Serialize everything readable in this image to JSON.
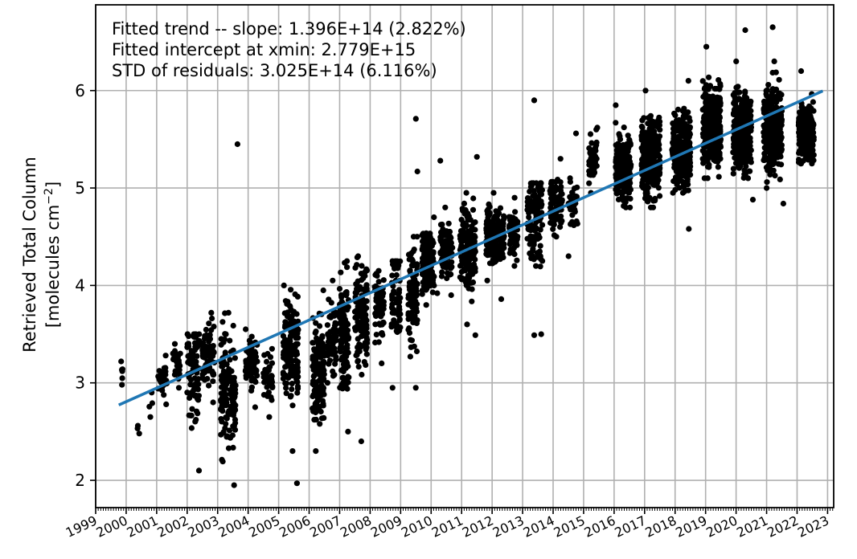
{
  "chart_data": {
    "type": "scatter",
    "title": "",
    "ylabel_line1": "Retrieved Total Column",
    "ylabel_line2": "[molecules cm",
    "ylabel_sup": "−2",
    "ylabel_close": "]",
    "xlim": [
      1999,
      2023.2
    ],
    "ylim": [
      1.72,
      6.88
    ],
    "yticks": [
      2,
      3,
      4,
      5,
      6
    ],
    "ytick_labels": [
      "2",
      "3",
      "4",
      "5",
      "6"
    ],
    "xticks": [
      1999,
      2000,
      2001,
      2002,
      2003,
      2004,
      2005,
      2006,
      2007,
      2008,
      2009,
      2010,
      2011,
      2012,
      2013,
      2014,
      2015,
      2016,
      2017,
      2018,
      2019,
      2020,
      2021,
      2022,
      2023
    ],
    "xtick_labels": [
      "1999",
      "2000",
      "2001",
      "2002",
      "2003",
      "2004",
      "2005",
      "2006",
      "2007",
      "2008",
      "2009",
      "2010",
      "2011",
      "2012",
      "2013",
      "2014",
      "2015",
      "2016",
      "2017",
      "2018",
      "2019",
      "2020",
      "2021",
      "2022",
      "2023"
    ],
    "grid": true,
    "annotations": [
      "Fitted trend -- slope: 1.396E+14 (2.822%)",
      "Fitted intercept at xmin: 2.779E+15",
      "STD of residuals: 3.025E+14 (6.116%)"
    ],
    "trend_line": {
      "x": [
        1999.8,
        2022.8
      ],
      "y": [
        2.779,
        5.99
      ],
      "color": "#1f77b4"
    },
    "series_color": "#000000",
    "clusters": [
      {
        "x": 1999.85,
        "w": 0.08,
        "n": 6,
        "lo": 2.98,
        "hi": 3.22,
        "c": 3.1
      },
      {
        "x": 2000.4,
        "w": 0.12,
        "n": 3,
        "lo": 2.48,
        "hi": 2.56,
        "c": 2.52
      },
      {
        "x": 2000.8,
        "w": 0.12,
        "n": 4,
        "lo": 2.65,
        "hi": 2.9,
        "c": 2.8
      },
      {
        "x": 2001.2,
        "w": 0.3,
        "n": 30,
        "lo": 2.78,
        "hi": 3.28,
        "c": 3.05
      },
      {
        "x": 2001.65,
        "w": 0.25,
        "n": 25,
        "lo": 2.95,
        "hi": 3.4,
        "c": 3.2
      },
      {
        "x": 2002.2,
        "w": 0.4,
        "n": 80,
        "lo": 2.1,
        "hi": 3.5,
        "c": 3.1
      },
      {
        "x": 2002.7,
        "w": 0.4,
        "n": 80,
        "lo": 2.8,
        "hi": 3.72,
        "c": 3.3
      },
      {
        "x": 2003.35,
        "w": 0.5,
        "n": 150,
        "lo": 1.95,
        "hi": 3.72,
        "c": 2.9
      },
      {
        "x": 2004.1,
        "w": 0.4,
        "n": 60,
        "lo": 2.75,
        "hi": 3.55,
        "c": 3.2
      },
      {
        "x": 2004.65,
        "w": 0.3,
        "n": 40,
        "lo": 2.65,
        "hi": 3.35,
        "c": 3.05
      },
      {
        "x": 2005.4,
        "w": 0.5,
        "n": 150,
        "lo": 2.3,
        "hi": 4.0,
        "c": 3.3
      },
      {
        "x": 2006.3,
        "w": 0.4,
        "n": 130,
        "lo": 2.3,
        "hi": 3.95,
        "c": 3.1
      },
      {
        "x": 2006.75,
        "w": 0.3,
        "n": 60,
        "lo": 3.0,
        "hi": 4.05,
        "c": 3.5
      },
      {
        "x": 2007.15,
        "w": 0.3,
        "n": 110,
        "lo": 2.5,
        "hi": 4.25,
        "c": 3.5
      },
      {
        "x": 2007.7,
        "w": 0.4,
        "n": 120,
        "lo": 2.4,
        "hi": 4.3,
        "c": 3.7
      },
      {
        "x": 2008.3,
        "w": 0.3,
        "n": 60,
        "lo": 3.2,
        "hi": 4.15,
        "c": 3.8
      },
      {
        "x": 2008.85,
        "w": 0.3,
        "n": 60,
        "lo": 2.95,
        "hi": 4.25,
        "c": 3.9
      },
      {
        "x": 2009.4,
        "w": 0.3,
        "n": 100,
        "lo": 2.95,
        "hi": 4.5,
        "c": 3.9
      },
      {
        "x": 2009.9,
        "w": 0.4,
        "n": 150,
        "lo": 3.8,
        "hi": 4.7,
        "c": 4.25
      },
      {
        "x": 2010.5,
        "w": 0.4,
        "n": 100,
        "lo": 3.9,
        "hi": 4.8,
        "c": 4.35
      },
      {
        "x": 2011.2,
        "w": 0.5,
        "n": 150,
        "lo": 3.6,
        "hi": 4.95,
        "c": 4.35
      },
      {
        "x": 2012.1,
        "w": 0.6,
        "n": 180,
        "lo": 4.05,
        "hi": 4.95,
        "c": 4.5
      },
      {
        "x": 2012.7,
        "w": 0.3,
        "n": 60,
        "lo": 4.2,
        "hi": 4.9,
        "c": 4.55
      },
      {
        "x": 2013.4,
        "w": 0.5,
        "n": 120,
        "lo": 3.5,
        "hi": 5.05,
        "c": 4.7
      },
      {
        "x": 2014.1,
        "w": 0.4,
        "n": 80,
        "lo": 4.5,
        "hi": 5.3,
        "c": 4.85
      },
      {
        "x": 2014.65,
        "w": 0.3,
        "n": 30,
        "lo": 4.3,
        "hi": 5.1,
        "c": 4.8
      },
      {
        "x": 2015.3,
        "w": 0.3,
        "n": 40,
        "lo": 4.95,
        "hi": 5.6,
        "c": 5.3
      },
      {
        "x": 2016.3,
        "w": 0.5,
        "n": 200,
        "lo": 4.8,
        "hi": 5.85,
        "c": 5.2
      },
      {
        "x": 2017.2,
        "w": 0.6,
        "n": 300,
        "lo": 4.8,
        "hi": 6.0,
        "c": 5.3
      },
      {
        "x": 2018.2,
        "w": 0.6,
        "n": 300,
        "lo": 4.95,
        "hi": 6.1,
        "c": 5.4
      },
      {
        "x": 2019.2,
        "w": 0.6,
        "n": 300,
        "lo": 5.1,
        "hi": 6.45,
        "c": 5.65
      },
      {
        "x": 2020.2,
        "w": 0.6,
        "n": 300,
        "lo": 5.1,
        "hi": 6.3,
        "c": 5.6
      },
      {
        "x": 2021.2,
        "w": 0.6,
        "n": 300,
        "lo": 5.0,
        "hi": 6.3,
        "c": 5.6
      },
      {
        "x": 2022.3,
        "w": 0.5,
        "n": 220,
        "lo": 5.25,
        "hi": 6.2,
        "c": 5.55
      }
    ],
    "outliers": [
      [
        2003.65,
        5.45
      ],
      [
        2005.6,
        1.97
      ],
      [
        2009.5,
        5.71
      ],
      [
        2009.55,
        5.17
      ],
      [
        2010.3,
        5.28
      ],
      [
        2013.38,
        5.9
      ],
      [
        2013.38,
        3.49
      ],
      [
        2011.45,
        3.49
      ],
      [
        2012.3,
        3.86
      ],
      [
        2010.2,
        3.92
      ],
      [
        2016.05,
        5.67
      ],
      [
        2016.2,
        5.5
      ],
      [
        2018.45,
        4.58
      ],
      [
        2020.55,
        4.88
      ],
      [
        2021.55,
        4.84
      ],
      [
        2021.2,
        6.65
      ],
      [
        2020.3,
        6.62
      ],
      [
        2015.45,
        5.62
      ],
      [
        2014.75,
        5.56
      ],
      [
        2011.5,
        5.32
      ]
    ]
  }
}
